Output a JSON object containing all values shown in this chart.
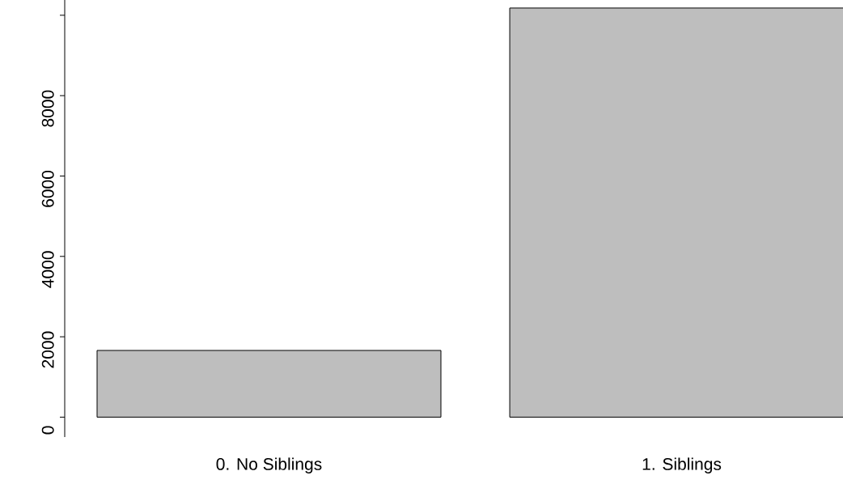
{
  "chart_data": {
    "type": "bar",
    "categories": [
      "0. No Siblings",
      "1. Siblings"
    ],
    "values": [
      1660,
      10180
    ],
    "color": "#bebebe",
    "ylim": [
      -495,
      10380
    ],
    "yticks": [
      0,
      2000,
      4000,
      6000,
      8000,
      {
        "value": 10000,
        "label": null
      }
    ],
    "grid": false
  }
}
